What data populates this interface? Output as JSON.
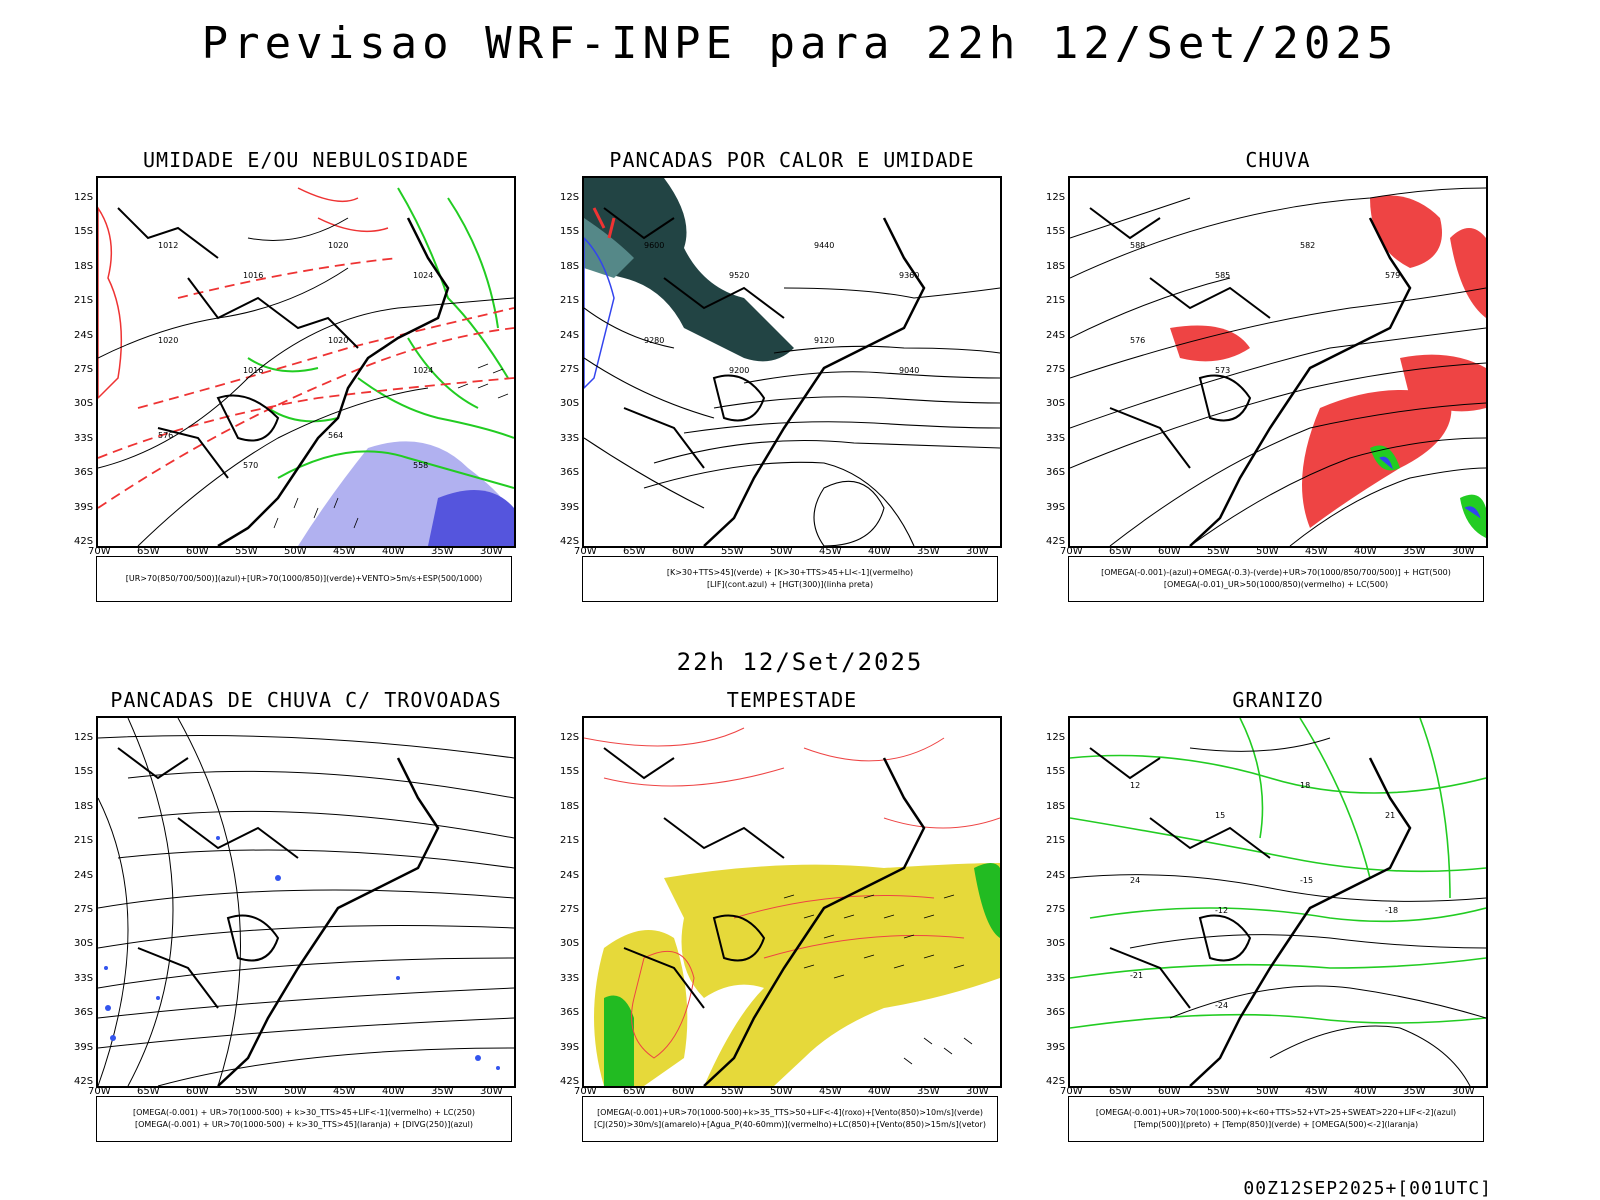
{
  "main_title": "Previsao WRF-INPE  para 22h 12/Set/2025",
  "mid_title": "22h 12/Set/2025",
  "footer": "00Z12SEP2025+[001UTC]",
  "axes": {
    "lat_labels": [
      "12S",
      "15S",
      "18S",
      "21S",
      "24S",
      "27S",
      "30S",
      "33S",
      "36S",
      "39S",
      "42S"
    ],
    "lon_labels": [
      "70W",
      "65W",
      "60W",
      "55W",
      "50W",
      "45W",
      "40W",
      "35W",
      "30W"
    ]
  },
  "panels": [
    {
      "title": "UMIDADE E/OU NEBULOSIDADE",
      "legend": [
        "[UR>70(850/700/500)](azul)+[UR>70(1000/850)](verde)+VENTO>5m/s+ESP(500/1000)"
      ],
      "labels": [
        "1012",
        "1016",
        "1020",
        "1024",
        "1020",
        "1016",
        "1020",
        "1024",
        "576",
        "570",
        "564",
        "558"
      ]
    },
    {
      "title": "PANCADAS POR CALOR E UMIDADE",
      "legend": [
        "[K>30+TTS>45](verde) + [K>30+TTS>45+LI<-1](vermelho)",
        "[LIF](cont.azul) + [HGT(300)](linha preta)"
      ],
      "labels": [
        "9600",
        "9520",
        "9440",
        "9360",
        "9280",
        "9200",
        "9120",
        "9040"
      ]
    },
    {
      "title": "CHUVA",
      "legend": [
        "[OMEGA(-0.001)-(azul)+OMEGA(-0.3)-(verde)+UR>70(1000/850/700/500)] + HGT(500)",
        "[OMEGA(-0.01)_UR>50(1000/850)(vermelho) + LC(500)"
      ],
      "labels": [
        "588",
        "585",
        "582",
        "579",
        "576",
        "573"
      ]
    },
    {
      "title": "PANCADAS DE CHUVA C/ TROVOADAS",
      "legend": [
        "[OMEGA(-0.001) + UR>70(1000-500) + k>30_TTS>45+LIF<-1](vermelho) + LC(250)",
        "[OMEGA(-0.001) + UR>70(1000-500) + k>30_TTS>45](laranja) + [DIVG(250)](azul)"
      ],
      "labels": []
    },
    {
      "title": "TEMPESTADE",
      "legend": [
        "[OMEGA(-0.001)+UR>70(1000-500)+k>35_TTS>50+LIF<-4](roxo)+[Vento(850)>10m/s](verde)",
        "[CJ(250)>30m/s](amarelo)+[Agua_P(40-60mm)](vermelho)+LC(850)+[Vento(850)>15m/s](vetor)"
      ],
      "labels": []
    },
    {
      "title": "GRANIZO",
      "legend": [
        "[OMEGA(-0.001)+UR>70(1000-500)+k<60+TTS>52+VT>25+SWEAT>220+LIF<-2](azul)",
        "[Temp(500)](preto) + [Temp(850)](verde) + [OMEGA(500)<-2](laranja)"
      ],
      "labels": [
        "12",
        "15",
        "18",
        "21",
        "24",
        "-12",
        "-15",
        "-18",
        "-21",
        "-24"
      ]
    }
  ]
}
